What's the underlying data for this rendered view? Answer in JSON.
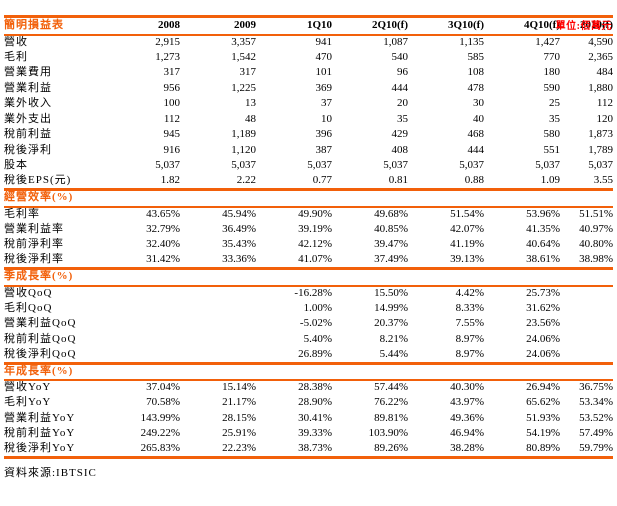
{
  "unit_label": "單位:佰萬元",
  "source_label": "資料來源:IBTSIC",
  "colors": {
    "accent_orange": "#f2600a",
    "unit_red": "#ff0000",
    "body_text": "#000000"
  },
  "table": {
    "title": "簡明損益表",
    "columns": [
      "2008",
      "2009",
      "1Q10",
      "2Q10(f)",
      "3Q10(f)",
      "4Q10(f)",
      "2010(f)"
    ],
    "sections": [
      {
        "title": null,
        "rows": [
          {
            "label": "營收",
            "values": [
              "2,915",
              "3,357",
              "941",
              "1,087",
              "1,135",
              "1,427",
              "4,590"
            ]
          },
          {
            "label": "毛利",
            "values": [
              "1,273",
              "1,542",
              "470",
              "540",
              "585",
              "770",
              "2,365"
            ]
          },
          {
            "label": "營業費用",
            "values": [
              "317",
              "317",
              "101",
              "96",
              "108",
              "180",
              "484"
            ]
          },
          {
            "label": "營業利益",
            "values": [
              "956",
              "1,225",
              "369",
              "444",
              "478",
              "590",
              "1,880"
            ]
          },
          {
            "label": "業外收入",
            "values": [
              "100",
              "13",
              "37",
              "20",
              "30",
              "25",
              "112"
            ]
          },
          {
            "label": "業外支出",
            "values": [
              "112",
              "48",
              "10",
              "35",
              "40",
              "35",
              "120"
            ]
          },
          {
            "label": "稅前利益",
            "values": [
              "945",
              "1,189",
              "396",
              "429",
              "468",
              "580",
              "1,873"
            ]
          },
          {
            "label": "稅後淨利",
            "values": [
              "916",
              "1,120",
              "387",
              "408",
              "444",
              "551",
              "1,789"
            ]
          },
          {
            "label": "股本",
            "values": [
              "5,037",
              "5,037",
              "5,037",
              "5,037",
              "5,037",
              "5,037",
              "5,037"
            ]
          },
          {
            "label": "稅後EPS(元)",
            "values": [
              "1.82",
              "2.22",
              "0.77",
              "0.81",
              "0.88",
              "1.09",
              "3.55"
            ]
          }
        ]
      },
      {
        "title": "經營效率(%)",
        "rows": [
          {
            "label": "毛利率",
            "values": [
              "43.65%",
              "45.94%",
              "49.90%",
              "49.68%",
              "51.54%",
              "53.96%",
              "51.51%"
            ]
          },
          {
            "label": "營業利益率",
            "values": [
              "32.79%",
              "36.49%",
              "39.19%",
              "40.85%",
              "42.07%",
              "41.35%",
              "40.97%"
            ]
          },
          {
            "label": "稅前淨利率",
            "values": [
              "32.40%",
              "35.43%",
              "42.12%",
              "39.47%",
              "41.19%",
              "40.64%",
              "40.80%"
            ]
          },
          {
            "label": "稅後淨利率",
            "values": [
              "31.42%",
              "33.36%",
              "41.07%",
              "37.49%",
              "39.13%",
              "38.61%",
              "38.98%"
            ]
          }
        ]
      },
      {
        "title": "季成長率(%)",
        "rows": [
          {
            "label": "營收QoQ",
            "values": [
              "",
              "",
              "-16.28%",
              "15.50%",
              "4.42%",
              "25.73%",
              ""
            ]
          },
          {
            "label": "毛利QoQ",
            "values": [
              "",
              "",
              "1.00%",
              "14.99%",
              "8.33%",
              "31.62%",
              ""
            ]
          },
          {
            "label": "營業利益QoQ",
            "values": [
              "",
              "",
              "-5.02%",
              "20.37%",
              "7.55%",
              "23.56%",
              ""
            ]
          },
          {
            "label": "稅前利益QoQ",
            "values": [
              "",
              "",
              "5.40%",
              "8.21%",
              "8.97%",
              "24.06%",
              ""
            ]
          },
          {
            "label": "稅後淨利QoQ",
            "values": [
              "",
              "",
              "26.89%",
              "5.44%",
              "8.97%",
              "24.06%",
              ""
            ]
          }
        ]
      },
      {
        "title": "年成長率(%)",
        "rows": [
          {
            "label": "營收YoY",
            "values": [
              "37.04%",
              "15.14%",
              "28.38%",
              "57.44%",
              "40.30%",
              "26.94%",
              "36.75%"
            ]
          },
          {
            "label": "毛利YoY",
            "values": [
              "70.58%",
              "21.17%",
              "28.90%",
              "76.22%",
              "43.97%",
              "65.62%",
              "53.34%"
            ]
          },
          {
            "label": "營業利益YoY",
            "values": [
              "143.99%",
              "28.15%",
              "30.41%",
              "89.81%",
              "49.36%",
              "51.93%",
              "53.52%"
            ]
          },
          {
            "label": "稅前利益YoY",
            "values": [
              "249.22%",
              "25.91%",
              "39.33%",
              "103.90%",
              "46.94%",
              "54.19%",
              "57.49%"
            ]
          },
          {
            "label": "稅後淨利YoY",
            "values": [
              "265.83%",
              "22.23%",
              "38.73%",
              "89.26%",
              "38.28%",
              "80.89%",
              "59.79%"
            ]
          }
        ]
      }
    ]
  }
}
